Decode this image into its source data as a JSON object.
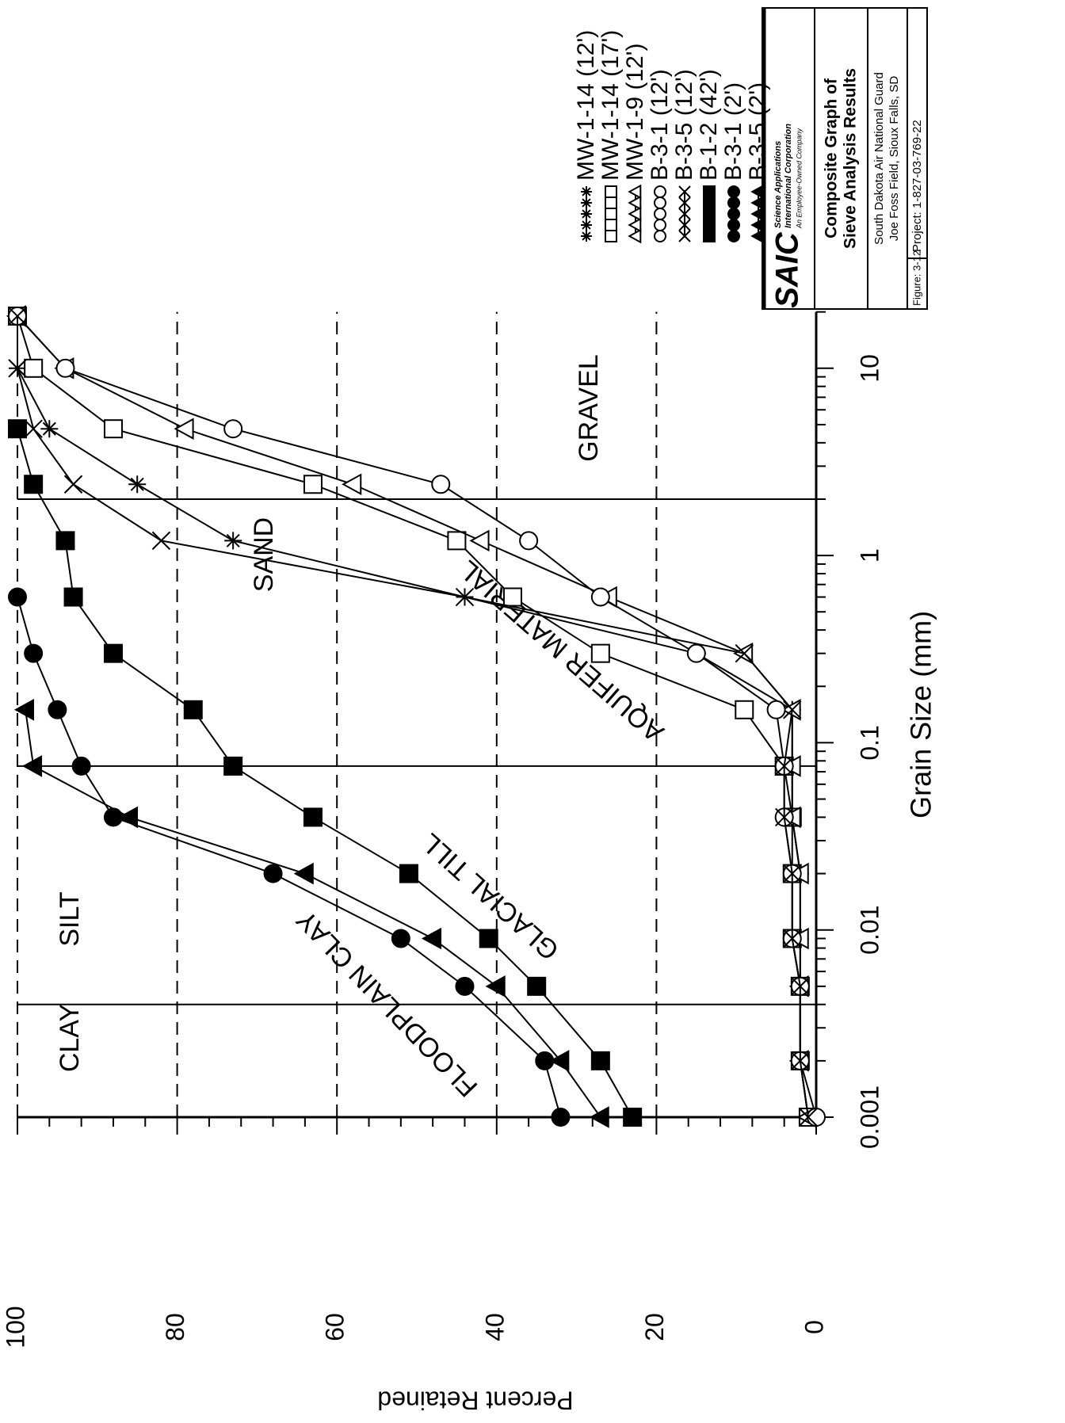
{
  "chart_data": {
    "type": "line",
    "xlabel": "Grain Size (mm)",
    "ylabel": "Percent Retained",
    "xlog": true,
    "xlim": [
      0.001,
      20
    ],
    "ylim": [
      0,
      100
    ],
    "xticks": [
      0.001,
      0.01,
      0.1,
      1,
      10
    ],
    "yticks": [
      0,
      20,
      40,
      60,
      80,
      100
    ],
    "grid": true,
    "boundaries": [
      0.004,
      0.075,
      2
    ],
    "annotations": [
      "CLAY",
      "SILT",
      "SAND",
      "GRAVEL",
      "AQUIFER MATERIAL",
      "GLACIAL TILL",
      "FLOODPLAIN CLAY"
    ],
    "series": [
      {
        "name": "MW-1-14 (12')",
        "color": "#000000",
        "marker": "asterisk",
        "x": [
          19,
          10,
          4.75,
          2.4,
          1.2,
          0.6,
          0.3,
          0.15,
          0.075,
          0.04,
          0.02,
          0.009,
          0.005,
          0.002,
          0.001
        ],
        "values": [
          100,
          100,
          96,
          85,
          73,
          44,
          15,
          3,
          3,
          3,
          2,
          2,
          2,
          2,
          1
        ]
      },
      {
        "name": "MW-1-14 (17')",
        "color": "#000000",
        "marker": "square-open",
        "x": [
          19,
          10,
          4.75,
          2.4,
          1.2,
          0.6,
          0.3,
          0.15,
          0.075,
          0.04,
          0.02,
          0.009,
          0.005,
          0.002,
          0.001
        ],
        "values": [
          100,
          98,
          88,
          63,
          45,
          38,
          27,
          9,
          4,
          3,
          3,
          3,
          2,
          2,
          1
        ]
      },
      {
        "name": "MW-1-9 (12')",
        "color": "#000000",
        "marker": "triangle-open",
        "x": [
          19,
          10,
          4.75,
          2.4,
          1.2,
          0.6,
          0.3,
          0.15,
          0.075,
          0.04,
          0.02,
          0.009,
          0.005,
          0.002,
          0.001
        ],
        "values": [
          100,
          94,
          79,
          58,
          42,
          26,
          9,
          3,
          3,
          3,
          2,
          2,
          2,
          2,
          1
        ]
      },
      {
        "name": "B-3-1 (12')",
        "color": "#000000",
        "marker": "circle-open",
        "x": [
          19,
          10,
          4.75,
          2.4,
          1.2,
          0.6,
          0.3,
          0.15,
          0.075,
          0.04,
          0.02,
          0.009,
          0.005,
          0.002,
          0.001
        ],
        "values": [
          100,
          94,
          73,
          47,
          36,
          27,
          15,
          5,
          4,
          4,
          3,
          3,
          2,
          2,
          0
        ]
      },
      {
        "name": "B-3-5 (12')",
        "color": "#000000",
        "marker": "cross",
        "x": [
          19,
          10,
          4.75,
          2.4,
          1.2,
          0.6,
          0.3,
          0.15,
          0.075,
          0.04,
          0.02,
          0.009,
          0.005,
          0.002,
          0.001
        ],
        "values": [
          100,
          100,
          98,
          93,
          82,
          44,
          9,
          3,
          4,
          4,
          3,
          3,
          2,
          2,
          1
        ]
      },
      {
        "name": "B-1-2 (42')",
        "color": "#000000",
        "marker": "square-filled",
        "x": [
          4.75,
          2.4,
          1.2,
          0.6,
          0.3,
          0.15,
          0.075,
          0.04,
          0.02,
          0.009,
          0.005,
          0.002,
          0.001
        ],
        "values": [
          100,
          98,
          94,
          93,
          88,
          78,
          73,
          63,
          51,
          41,
          35,
          27,
          23
        ]
      },
      {
        "name": "B-3-1 (2')",
        "color": "#000000",
        "marker": "circle-filled",
        "x": [
          0.6,
          0.3,
          0.15,
          0.075,
          0.04,
          0.02,
          0.009,
          0.005,
          0.002,
          0.001
        ],
        "values": [
          100,
          98,
          95,
          92,
          88,
          68,
          52,
          44,
          34,
          32
        ]
      },
      {
        "name": "B-3-5 (2')",
        "color": "#000000",
        "marker": "triangle-filled",
        "x": [
          0.15,
          0.075,
          0.04,
          0.02,
          0.009,
          0.005,
          0.002,
          0.001
        ],
        "values": [
          99,
          98,
          86,
          64,
          48,
          40,
          32,
          27
        ]
      }
    ]
  },
  "title_block": {
    "logo": "SAIC",
    "company": [
      "Science Applications",
      "International Corporation"
    ],
    "tagline": "An Employee-Owned Company",
    "title": [
      "Composite Graph of",
      "Sieve Analysis Results"
    ],
    "location": [
      "South Dakota Air National Guard",
      "Joe Foss Field, Sioux Falls, SD"
    ],
    "figure": "Figure: 3-12",
    "project": "Project: 1-827-03-769-22"
  }
}
